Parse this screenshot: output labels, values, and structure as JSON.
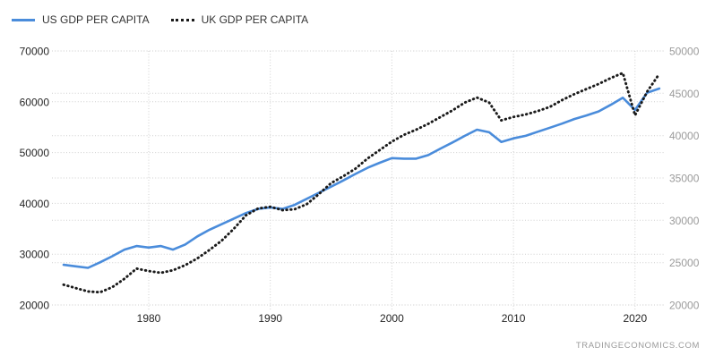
{
  "watermark": "TRADINGECONOMICS.COM",
  "legend": {
    "items": [
      {
        "label": "US GDP PER CAPITA",
        "color": "#4a8cdb",
        "style": "solid"
      },
      {
        "label": "UK GDP PER CAPITA",
        "color": "#1a1a1a",
        "style": "dotted"
      }
    ]
  },
  "chart_data": {
    "type": "line",
    "grid": true,
    "legend_position": "top-left",
    "grid_color": "#cfcfcf",
    "x_axis_label_color": "#262626",
    "x": [
      1973,
      1974,
      1975,
      1976,
      1977,
      1978,
      1979,
      1980,
      1981,
      1982,
      1983,
      1984,
      1985,
      1986,
      1987,
      1988,
      1989,
      1990,
      1991,
      1992,
      1993,
      1994,
      1995,
      1996,
      1997,
      1998,
      1999,
      2000,
      2001,
      2002,
      2003,
      2004,
      2005,
      2006,
      2007,
      2008,
      2009,
      2010,
      2011,
      2012,
      2013,
      2014,
      2015,
      2016,
      2017,
      2018,
      2019,
      2020,
      2021,
      2022
    ],
    "x_ticks": [
      1980,
      1990,
      2000,
      2010,
      2020
    ],
    "left_axis": {
      "min": 20000,
      "max": 70000,
      "ticks": [
        70000,
        60000,
        50000,
        40000,
        30000,
        20000
      ],
      "label_color": "#262626"
    },
    "right_axis": {
      "min": 20000,
      "max": 50000,
      "ticks": [
        50000,
        45000,
        40000,
        35000,
        30000,
        25000,
        20000
      ],
      "label_color": "#9b9b9b"
    },
    "series": [
      {
        "name": "US GDP PER CAPITA",
        "slug": "us-gdp-per-capita",
        "axis": "left",
        "color": "#4a8cdb",
        "line_style": "solid",
        "values": [
          27900,
          27600,
          27300,
          28400,
          29600,
          30900,
          31600,
          31300,
          31600,
          30900,
          31900,
          33500,
          34800,
          35900,
          37000,
          38100,
          38900,
          39200,
          38900,
          39700,
          40900,
          42100,
          43300,
          44500,
          45800,
          47000,
          48000,
          48900,
          48800,
          48800,
          49500,
          50800,
          52000,
          53300,
          54500,
          54000,
          52100,
          52800,
          53300,
          54100,
          54900,
          55700,
          56600,
          57300,
          58100,
          59400,
          60800,
          58400,
          61800,
          62600
        ]
      },
      {
        "name": "UK GDP PER CAPITA",
        "slug": "uk-gdp-per-capita",
        "axis": "right",
        "color": "#1a1a1a",
        "line_style": "dotted",
        "values": [
          22400,
          22000,
          21600,
          21500,
          22100,
          23100,
          24300,
          24000,
          23800,
          24100,
          24700,
          25500,
          26500,
          27600,
          29000,
          30600,
          31400,
          31600,
          31200,
          31300,
          31900,
          33100,
          34400,
          35200,
          36100,
          37300,
          38300,
          39300,
          40100,
          40700,
          41400,
          42200,
          43000,
          43900,
          44500,
          43900,
          41800,
          42200,
          42500,
          42900,
          43400,
          44200,
          44900,
          45500,
          46100,
          46800,
          47400,
          42400,
          45200,
          47300
        ]
      }
    ]
  }
}
